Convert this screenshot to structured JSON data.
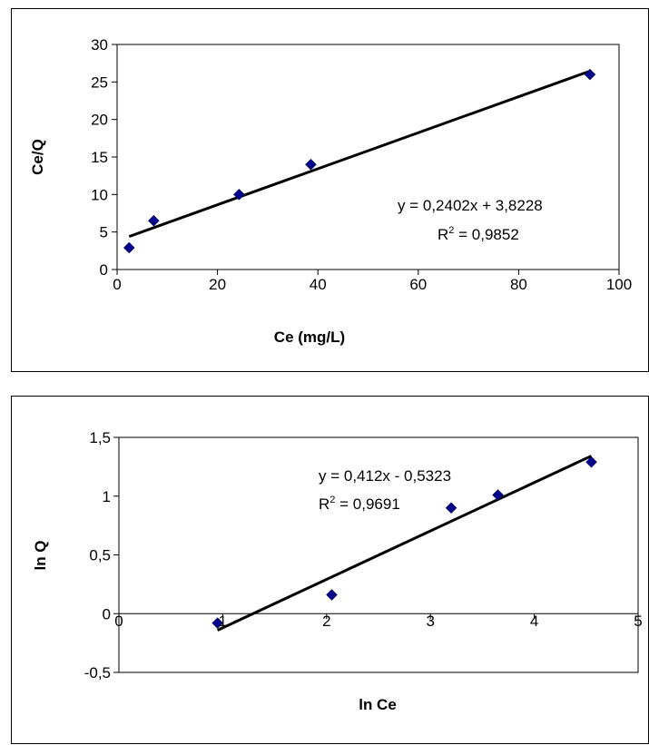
{
  "chart_data": [
    {
      "type": "scatter",
      "xlabel": "Ce (mg/L)",
      "ylabel": "Ce/Q",
      "xlim": [
        0,
        100
      ],
      "ylim": [
        0,
        30
      ],
      "x_ticks": [
        "0",
        "20",
        "40",
        "60",
        "80",
        "100"
      ],
      "y_ticks": [
        "0",
        "5",
        "10",
        "15",
        "20",
        "25",
        "30"
      ],
      "x_tick_values": [
        0,
        20,
        40,
        60,
        80,
        100
      ],
      "y_tick_values": [
        0,
        5,
        10,
        15,
        20,
        25,
        30
      ],
      "grid": false,
      "marker_color": "#00008B",
      "trendline": {
        "slope": 0.2402,
        "intercept": 3.8228,
        "x_range": [
          2.4,
          94.2
        ]
      },
      "equation": "y = 0,2402x + 3,8228",
      "r2_label": "R",
      "r2_sup": "2",
      "r2_value": " = 0,9852",
      "series": [
        {
          "x": [
            2.4,
            7.3,
            24.3,
            38.6,
            94.2
          ],
          "y": [
            2.9,
            6.5,
            10.0,
            14.0,
            26.0
          ]
        }
      ]
    },
    {
      "type": "scatter",
      "xlabel": "ln Ce",
      "ylabel": "ln Q",
      "xlim": [
        0,
        5
      ],
      "ylim": [
        -0.5,
        1.5
      ],
      "x_ticks": [
        "0",
        "1",
        "2",
        "3",
        "4",
        "5"
      ],
      "y_ticks": [
        "-0,5",
        "0",
        "0,5",
        "1",
        "1,5"
      ],
      "x_tick_values": [
        0,
        1,
        2,
        3,
        4,
        5
      ],
      "y_tick_values": [
        -0.5,
        0,
        0.5,
        1,
        1.5
      ],
      "grid": false,
      "marker_color": "#00008B",
      "trendline": {
        "slope": 0.412,
        "intercept": -0.5323,
        "x_range": [
          0.95,
          4.55
        ]
      },
      "equation": "y = 0,412x - 0,5323",
      "r2_label": "R",
      "r2_sup": "2",
      "r2_value": " = 0,9691",
      "series": [
        {
          "x": [
            0.95,
            2.05,
            3.2,
            3.65,
            4.55
          ],
          "y": [
            -0.08,
            0.16,
            0.9,
            1.01,
            1.29
          ]
        }
      ]
    }
  ]
}
